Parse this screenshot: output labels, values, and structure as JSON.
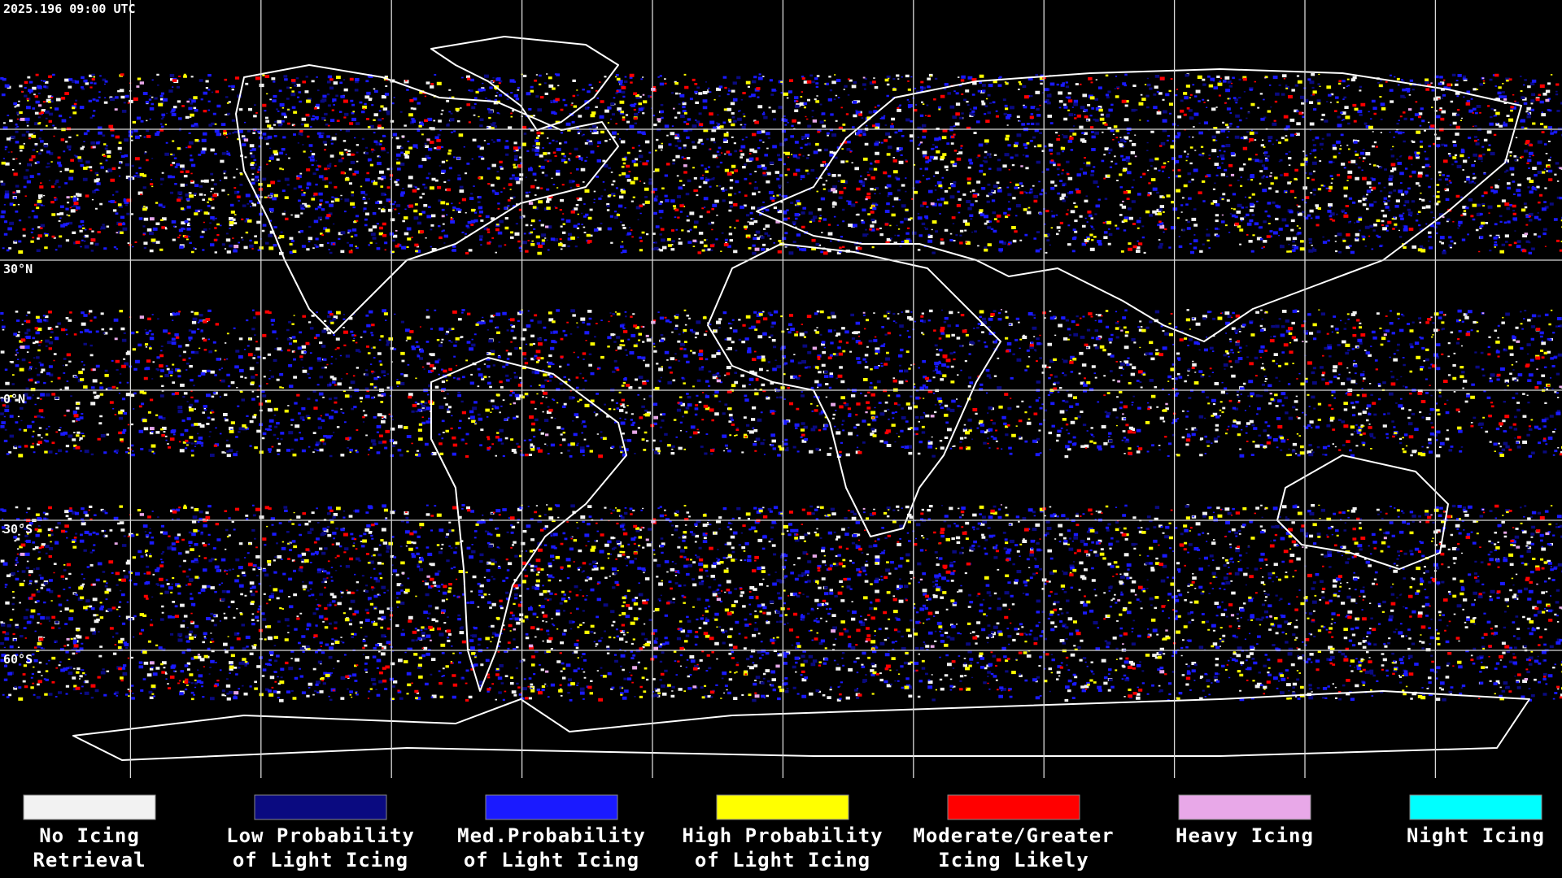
{
  "timestamp": "2025.196 09:00 UTC",
  "latitude_labels": [
    "30°N",
    "0°N",
    "30°S",
    "60°S"
  ],
  "legend": [
    {
      "lines": [
        "No Icing",
        "Retrieval"
      ],
      "color": "#f2f2f2"
    },
    {
      "lines": [
        "Low Probability",
        "of Light Icing"
      ],
      "color": "#0a0a80"
    },
    {
      "lines": [
        "Med.Probability",
        "of Light Icing"
      ],
      "color": "#1a1aff"
    },
    {
      "lines": [
        "High Probability",
        "of Light Icing"
      ],
      "color": "#ffff00"
    },
    {
      "lines": [
        "Moderate/Greater",
        "Icing Likely"
      ],
      "color": "#ff0000"
    },
    {
      "lines": [
        "Heavy Icing"
      ],
      "color": "#e8a8e8"
    },
    {
      "lines": [
        "Night Icing"
      ],
      "color": "#00ffff"
    }
  ]
}
